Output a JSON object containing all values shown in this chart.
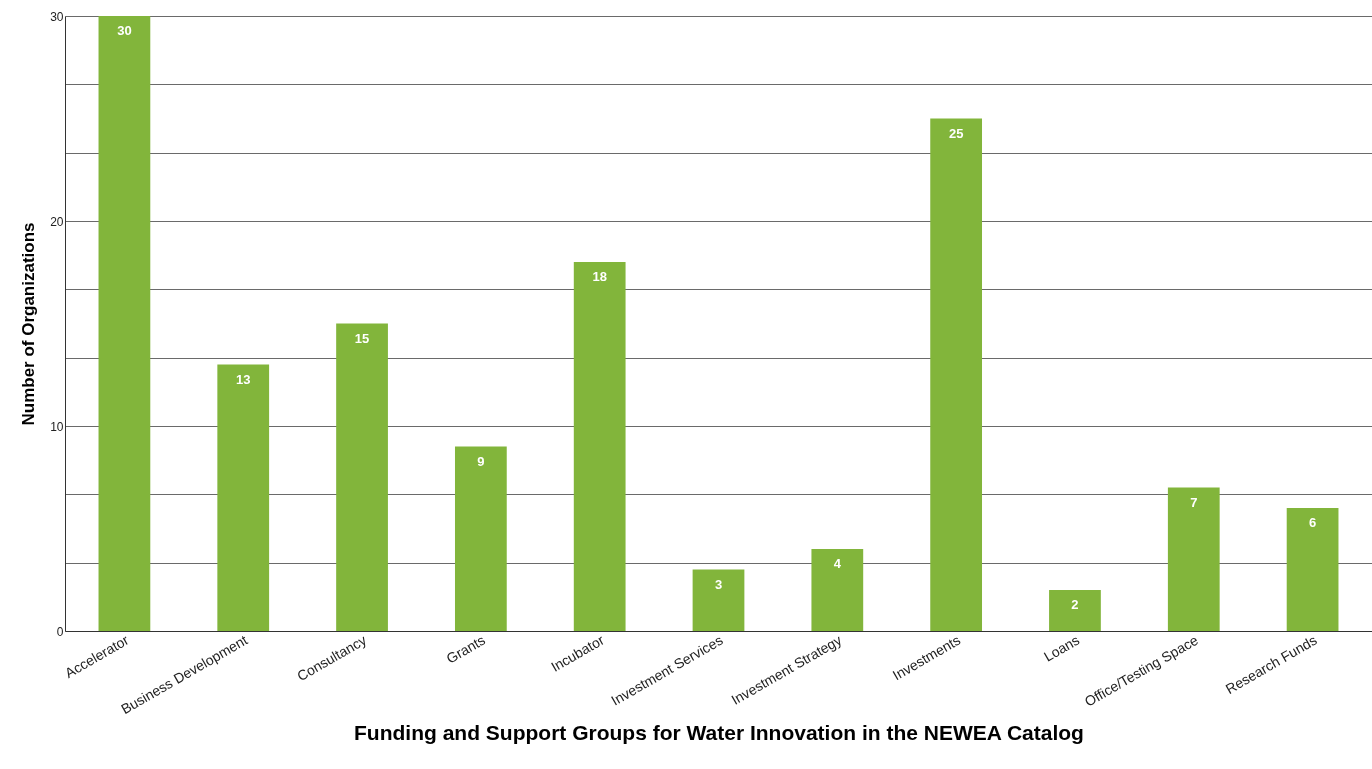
{
  "chart_data": {
    "type": "bar",
    "xlabel": "Funding and Support Groups for Water Innovation in the NEWEA Catalog",
    "ylabel": "Number of Organizations",
    "categories": [
      "Accelerator",
      "Business Development",
      "Consultancy",
      "Grants",
      "Incubator",
      "Investment Services",
      "Investment Strategy",
      "Investments",
      "Loans",
      "Office/Testing Space",
      "Research Funds"
    ],
    "values": [
      30,
      13,
      15,
      9,
      18,
      3,
      4,
      25,
      2,
      7,
      6
    ],
    "color": "#82b53b",
    "ylim": [
      0,
      30
    ],
    "yticks": [
      0,
      {
        "value": 3.333,
        "label": null
      },
      {
        "value": 6.667,
        "label": null
      },
      10,
      {
        "value": 13.333,
        "label": null
      },
      {
        "value": 16.667,
        "label": null
      },
      20,
      {
        "value": 23.333,
        "label": null
      },
      {
        "value": 26.667,
        "label": null
      },
      30
    ],
    "grid": "y",
    "data_labels": true
  }
}
